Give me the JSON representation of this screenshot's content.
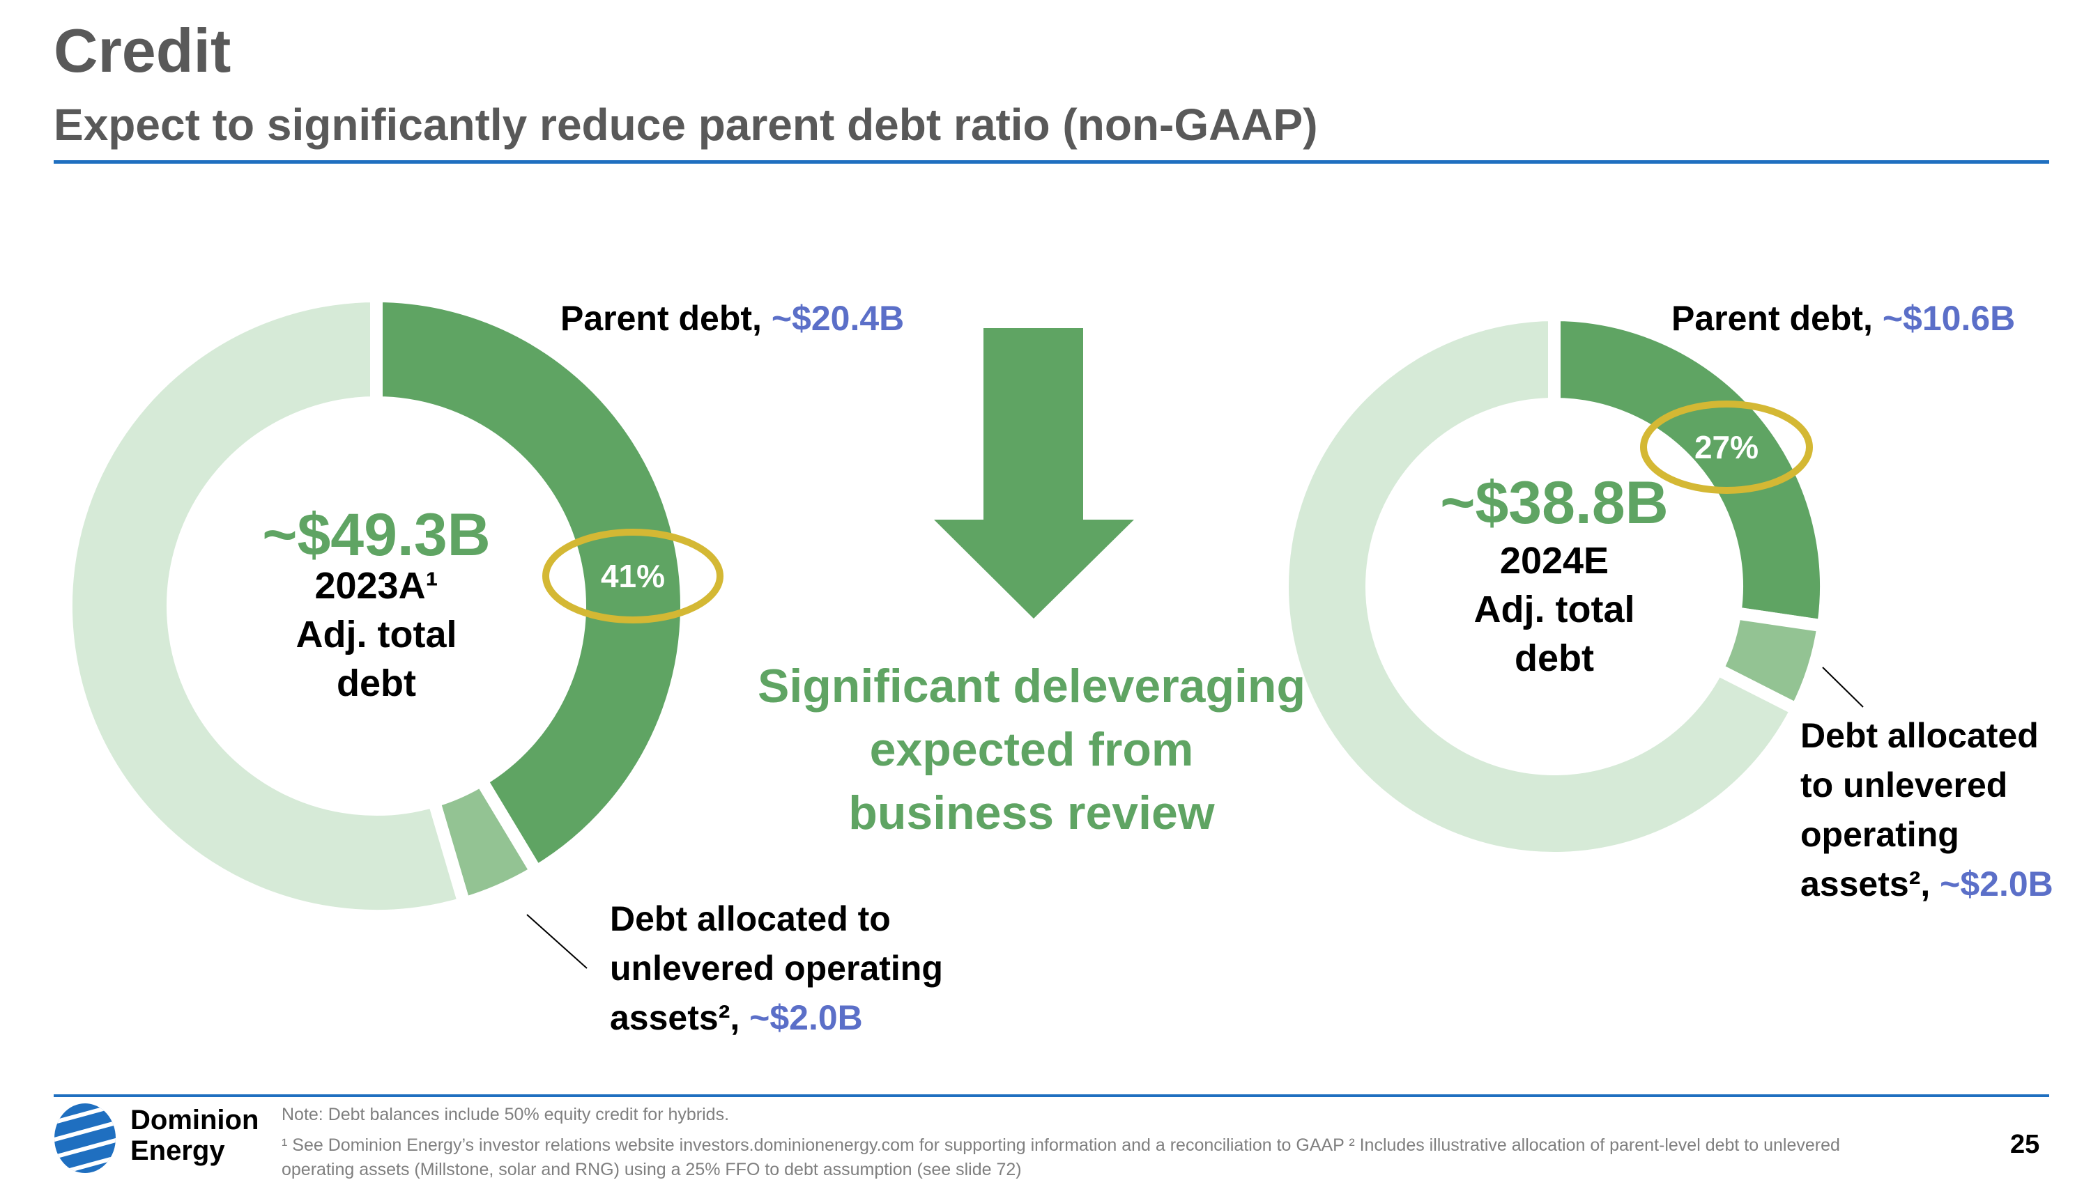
{
  "header": {
    "title": "Credit",
    "subtitle": "Expect to significantly reduce parent debt ratio (non-GAAP)"
  },
  "colors": {
    "parent_debt": "#5FA463",
    "unlevered": "#93C393",
    "other": "#D6EAD7",
    "highlight": "#D4B834",
    "value_text": "#5B6FC8",
    "rule": "#1F6FC0",
    "logo": "#1F6FC0"
  },
  "chart_data": [
    {
      "type": "pie",
      "donut": true,
      "center_value": "~$49.3B",
      "center_label": [
        "2023A¹",
        "Adj. total",
        "debt"
      ],
      "slices": [
        {
          "label": "Parent debt",
          "value": 20.4,
          "display": "~$20.4B",
          "percent_label": "41%"
        },
        {
          "label": "Debt allocated to unlevered operating assets²",
          "value": 2.0,
          "display": "~$2.0B"
        },
        {
          "label": "",
          "value": 26.9
        }
      ]
    },
    {
      "type": "pie",
      "donut": true,
      "center_value": "~$38.8B",
      "center_label": [
        "2024E",
        "Adj. total",
        "debt"
      ],
      "slices": [
        {
          "label": "Parent debt",
          "value": 10.6,
          "display": "~$10.6B",
          "percent_label": "27%"
        },
        {
          "label": "Debt allocated to unlevered operating assets²",
          "value": 2.0,
          "display": "~$2.0B"
        },
        {
          "label": "",
          "value": 26.2
        }
      ]
    }
  ],
  "left_labels": {
    "parent_prefix": "Parent debt, ",
    "parent_value": "~$20.4B",
    "unlev_lines": [
      "Debt allocated to",
      "unlevered operating",
      "assets², "
    ],
    "unlev_value": "~$2.0B"
  },
  "right_labels": {
    "parent_prefix": "Parent debt, ",
    "parent_value": "~$10.6B",
    "unlev_lines": [
      "Debt allocated",
      "to unlevered",
      "operating",
      "assets², "
    ],
    "unlev_value": "~$2.0B"
  },
  "middle": {
    "icon": "arrow-down",
    "lines": [
      "Significant deleveraging",
      "expected from",
      "business review"
    ]
  },
  "footer": {
    "logo_lines": [
      "Dominion",
      "Energy"
    ],
    "note": "Note: Debt balances include 50% equity credit for hybrids.",
    "footnote_1": "¹ See Dominion Energy’s investor relations website investors.dominionenergy.com for supporting information and a reconciliation to GAAP ² Includes illustrative allocation of parent-level debt to unlevered",
    "footnote_2": "operating assets  (Millstone, solar and RNG) using a 25% FFO to debt assumption (see slide 72)",
    "page_number": "25"
  }
}
